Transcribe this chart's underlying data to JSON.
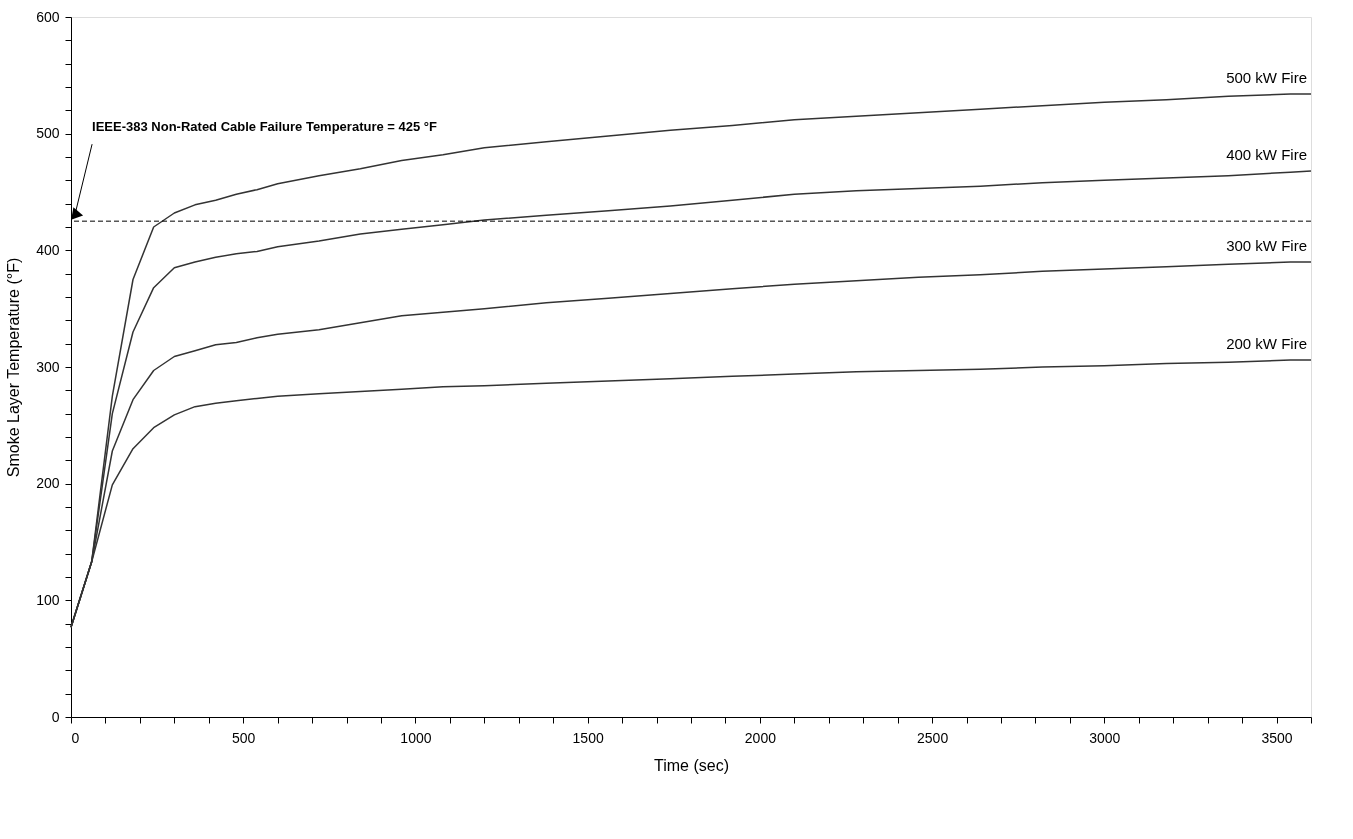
{
  "chart_data": {
    "type": "line",
    "xlabel": "Time (sec)",
    "ylabel": "Smoke Layer Temperature (°F)",
    "x": [
      0,
      60,
      120,
      180,
      240,
      300,
      360,
      420,
      480,
      540,
      600,
      720,
      840,
      960,
      1080,
      1200,
      1380,
      1560,
      1740,
      1920,
      2100,
      2280,
      2460,
      2640,
      2820,
      3000,
      3180,
      3360,
      3540,
      3600
    ],
    "series": [
      {
        "name": "500 kW Fire",
        "color": "#333333",
        "values": [
          77,
          133,
          275,
          375,
          420,
          432,
          439,
          443,
          448,
          452,
          457,
          464,
          470,
          477,
          482,
          488,
          493,
          498,
          503,
          507,
          512,
          515,
          518,
          521,
          524,
          527,
          529,
          532,
          534,
          534
        ]
      },
      {
        "name": "400 kW Fire",
        "color": "#333333",
        "values": [
          77,
          133,
          260,
          330,
          368,
          385,
          390,
          394,
          397,
          399,
          403,
          408,
          414,
          418,
          422,
          426,
          430,
          434,
          438,
          443,
          448,
          451,
          453,
          455,
          458,
          460,
          462,
          464,
          467,
          468
        ]
      },
      {
        "name": "300 kW Fire",
        "color": "#333333",
        "values": [
          77,
          133,
          228,
          272,
          297,
          309,
          314,
          319,
          321,
          325,
          328,
          332,
          338,
          344,
          347,
          350,
          355,
          359,
          363,
          367,
          371,
          374,
          377,
          379,
          382,
          384,
          386,
          388,
          390,
          390
        ]
      },
      {
        "name": "200 kW Fire",
        "color": "#333333",
        "values": [
          77,
          133,
          199,
          230,
          248,
          259,
          266,
          269,
          271,
          273,
          275,
          277,
          279,
          281,
          283,
          284,
          286,
          288,
          290,
          292,
          294,
          296,
          297,
          298,
          300,
          301,
          303,
          304,
          306,
          306
        ]
      }
    ],
    "xlim": [
      0,
      3600
    ],
    "xticks": [
      0,
      {
        "value": 100,
        "label": null
      },
      {
        "value": 200,
        "label": null
      },
      {
        "value": 300,
        "label": null
      },
      {
        "value": 400,
        "label": null
      },
      500,
      {
        "value": 600,
        "label": null
      },
      {
        "value": 700,
        "label": null
      },
      {
        "value": 800,
        "label": null
      },
      {
        "value": 900,
        "label": null
      },
      1000,
      {
        "value": 1100,
        "label": null
      },
      {
        "value": 1200,
        "label": null
      },
      {
        "value": 1300,
        "label": null
      },
      {
        "value": 1400,
        "label": null
      },
      1500,
      {
        "value": 1600,
        "label": null
      },
      {
        "value": 1700,
        "label": null
      },
      {
        "value": 1800,
        "label": null
      },
      {
        "value": 1900,
        "label": null
      },
      2000,
      {
        "value": 2100,
        "label": null
      },
      {
        "value": 2200,
        "label": null
      },
      {
        "value": 2300,
        "label": null
      },
      {
        "value": 2400,
        "label": null
      },
      2500,
      {
        "value": 2600,
        "label": null
      },
      {
        "value": 2700,
        "label": null
      },
      {
        "value": 2800,
        "label": null
      },
      {
        "value": 2900,
        "label": null
      },
      3000,
      {
        "value": 3100,
        "label": null
      },
      {
        "value": 3200,
        "label": null
      },
      {
        "value": 3300,
        "label": null
      },
      {
        "value": 3400,
        "label": null
      },
      3500,
      {
        "value": 3600,
        "label": null
      }
    ],
    "ylim": [
      0,
      600
    ],
    "yticks": [
      0,
      {
        "value": 20,
        "label": null
      },
      {
        "value": 40,
        "label": null
      },
      {
        "value": 60,
        "label": null
      },
      {
        "value": 80,
        "label": null
      },
      100,
      {
        "value": 120,
        "label": null
      },
      {
        "value": 140,
        "label": null
      },
      {
        "value": 160,
        "label": null
      },
      {
        "value": 180,
        "label": null
      },
      200,
      {
        "value": 220,
        "label": null
      },
      {
        "value": 240,
        "label": null
      },
      {
        "value": 260,
        "label": null
      },
      {
        "value": 280,
        "label": null
      },
      300,
      {
        "value": 320,
        "label": null
      },
      {
        "value": 340,
        "label": null
      },
      {
        "value": 360,
        "label": null
      },
      {
        "value": 380,
        "label": null
      },
      400,
      {
        "value": 420,
        "label": null
      },
      {
        "value": 440,
        "label": null
      },
      {
        "value": 460,
        "label": null
      },
      {
        "value": 480,
        "label": null
      },
      500,
      {
        "value": 520,
        "label": null
      },
      {
        "value": 540,
        "label": null
      },
      {
        "value": 560,
        "label": null
      },
      {
        "value": 580,
        "label": null
      },
      600
    ],
    "ref_lines": [
      {
        "axis": "y",
        "value": 425,
        "label": "IEEE-383 Non-Rated Cable Failure Temperature = 425 °F",
        "color": "#000000",
        "line_style": "dashed"
      }
    ],
    "grid": false,
    "legend": false,
    "marker": "none",
    "line_style": "solid"
  }
}
